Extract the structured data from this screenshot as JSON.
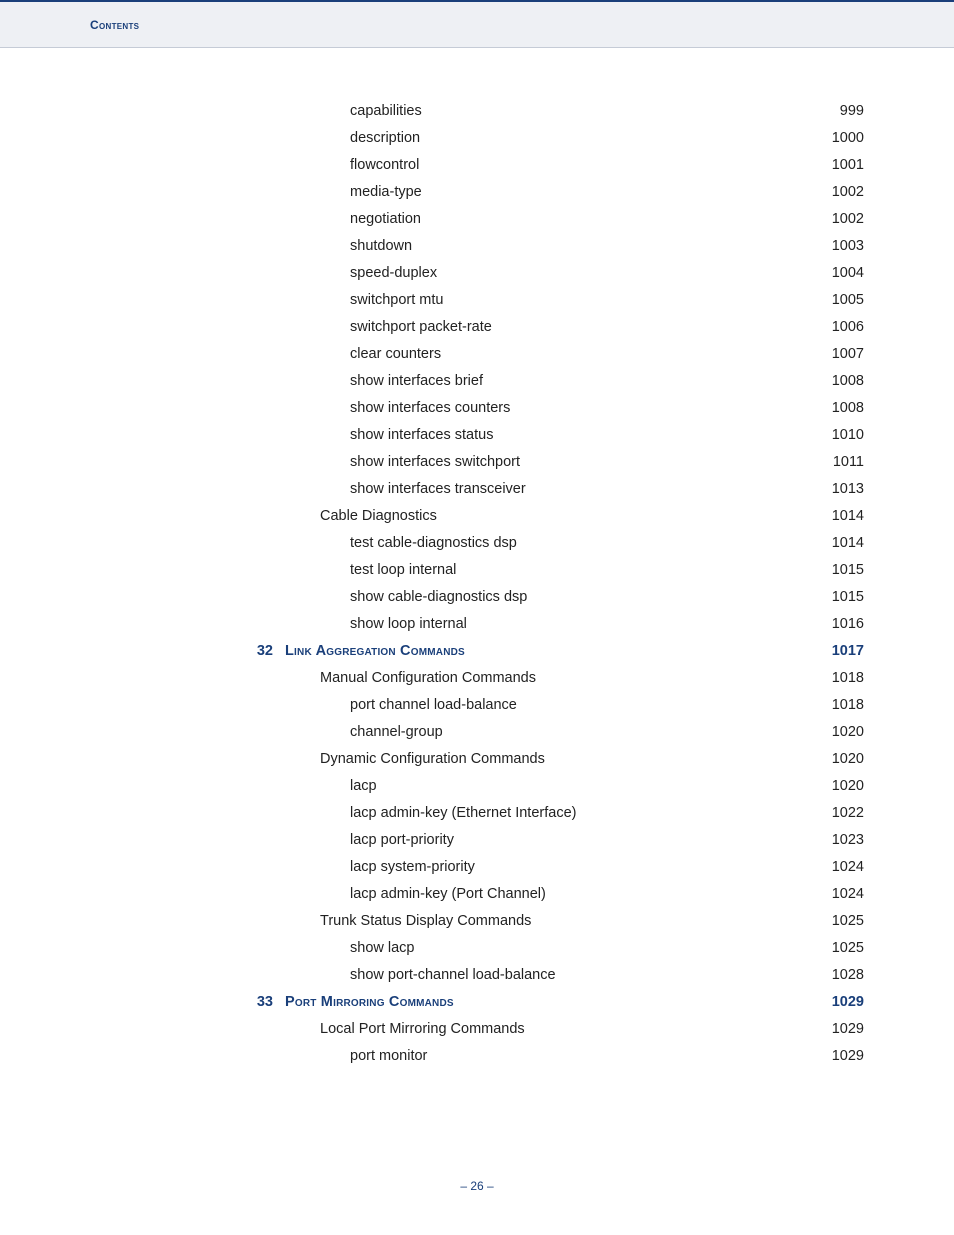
{
  "header": {
    "label": "Contents"
  },
  "entries": [
    {
      "type": "item",
      "indent": 2,
      "label": "capabilities",
      "page": "999"
    },
    {
      "type": "item",
      "indent": 2,
      "label": "description",
      "page": "1000"
    },
    {
      "type": "item",
      "indent": 2,
      "label": "flowcontrol",
      "page": "1001"
    },
    {
      "type": "item",
      "indent": 2,
      "label": "media-type",
      "page": "1002"
    },
    {
      "type": "item",
      "indent": 2,
      "label": "negotiation",
      "page": "1002"
    },
    {
      "type": "item",
      "indent": 2,
      "label": "shutdown",
      "page": "1003"
    },
    {
      "type": "item",
      "indent": 2,
      "label": "speed-duplex",
      "page": "1004"
    },
    {
      "type": "item",
      "indent": 2,
      "label": "switchport mtu",
      "page": "1005"
    },
    {
      "type": "item",
      "indent": 2,
      "label": "switchport packet-rate",
      "page": "1006"
    },
    {
      "type": "item",
      "indent": 2,
      "label": "clear counters",
      "page": "1007"
    },
    {
      "type": "item",
      "indent": 2,
      "label": "show interfaces brief",
      "page": "1008"
    },
    {
      "type": "item",
      "indent": 2,
      "label": "show interfaces counters",
      "page": "1008"
    },
    {
      "type": "item",
      "indent": 2,
      "label": "show interfaces status",
      "page": "1010"
    },
    {
      "type": "item",
      "indent": 2,
      "label": "show interfaces switchport",
      "page": "1011"
    },
    {
      "type": "item",
      "indent": 2,
      "label": "show interfaces transceiver",
      "page": "1013"
    },
    {
      "type": "item",
      "indent": 1,
      "label": "Cable Diagnostics",
      "page": "1014"
    },
    {
      "type": "item",
      "indent": 2,
      "label": "test cable-diagnostics dsp",
      "page": "1014"
    },
    {
      "type": "item",
      "indent": 2,
      "label": "test loop internal",
      "page": "1015"
    },
    {
      "type": "item",
      "indent": 2,
      "label": "show cable-diagnostics dsp",
      "page": "1015"
    },
    {
      "type": "item",
      "indent": 2,
      "label": "show loop internal",
      "page": "1016"
    },
    {
      "type": "section",
      "num": "32",
      "title": "Link Aggregation Commands",
      "page": "1017"
    },
    {
      "type": "item",
      "indent": 1,
      "label": "Manual Configuration Commands",
      "page": "1018"
    },
    {
      "type": "item",
      "indent": 2,
      "label": "port channel load-balance",
      "page": "1018"
    },
    {
      "type": "item",
      "indent": 2,
      "label": "channel-group",
      "page": "1020"
    },
    {
      "type": "item",
      "indent": 1,
      "label": "Dynamic Configuration Commands",
      "page": "1020"
    },
    {
      "type": "item",
      "indent": 2,
      "label": "lacp",
      "page": "1020"
    },
    {
      "type": "item",
      "indent": 2,
      "label": "lacp admin-key (Ethernet Interface)",
      "page": "1022"
    },
    {
      "type": "item",
      "indent": 2,
      "label": "lacp port-priority",
      "page": "1023"
    },
    {
      "type": "item",
      "indent": 2,
      "label": "lacp system-priority",
      "page": "1024"
    },
    {
      "type": "item",
      "indent": 2,
      "label": "lacp admin-key (Port Channel)",
      "page": "1024"
    },
    {
      "type": "item",
      "indent": 1,
      "label": "Trunk Status Display Commands",
      "page": "1025"
    },
    {
      "type": "item",
      "indent": 2,
      "label": "show lacp",
      "page": "1025"
    },
    {
      "type": "item",
      "indent": 2,
      "label": "show port-channel load-balance",
      "page": "1028"
    },
    {
      "type": "section",
      "num": "33",
      "title": "Port Mirroring Commands",
      "page": "1029"
    },
    {
      "type": "item",
      "indent": 1,
      "label": "Local Port Mirroring Commands",
      "page": "1029"
    },
    {
      "type": "item",
      "indent": 2,
      "label": "port monitor",
      "page": "1029"
    }
  ],
  "footer": {
    "page_label": "– 26 –"
  },
  "colors": {
    "accent": "#1a3f7a",
    "header_bg": "#eef0f4",
    "text": "#222222"
  }
}
